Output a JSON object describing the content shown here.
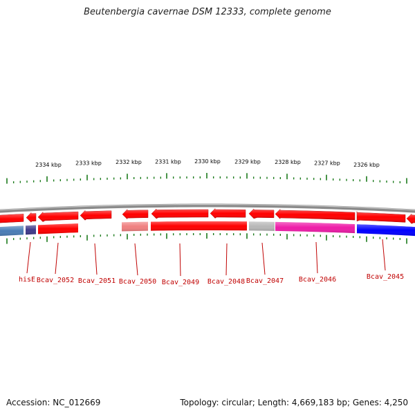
{
  "title": "Beutenbergia cavernae DSM 12333, complete genome",
  "footer": {
    "accession": "Accession: NC_012669",
    "stats": "Topology: circular; Length: 4,669,183 bp; Genes: 4,250"
  },
  "scale": {
    "kbp_labels": [
      "2334 kbp",
      "2333 kbp",
      "2332 kbp",
      "2331 kbp",
      "2330 kbp",
      "2329 kbp",
      "2328 kbp",
      "2327 kbp",
      "2326 kbp"
    ]
  },
  "colors": {
    "forward_red": "#ff0000",
    "backbone": "#8a8a8a",
    "ticks": "#1a7a1a",
    "label_red": "#c00000"
  },
  "genes": [
    {
      "label": "hisE",
      "color": "#4a7db5"
    },
    {
      "label": "Bcav_2052",
      "color": "#3f3a8a"
    },
    {
      "label": "Bcav_2051",
      "color": "#ff0000"
    },
    {
      "label": "Bcav_2050",
      "color": "#00c8c8"
    },
    {
      "label": "Bcav_2049",
      "color": "#f08080"
    },
    {
      "label": "Bcav_2048",
      "color": "#ff0000"
    },
    {
      "label": "Bcav_2047",
      "color": "#b8b8b8"
    },
    {
      "label": "Bcav_2046",
      "color": "#ee1ca8"
    },
    {
      "label": "Bcav_2045",
      "color": "#0000ff"
    }
  ]
}
